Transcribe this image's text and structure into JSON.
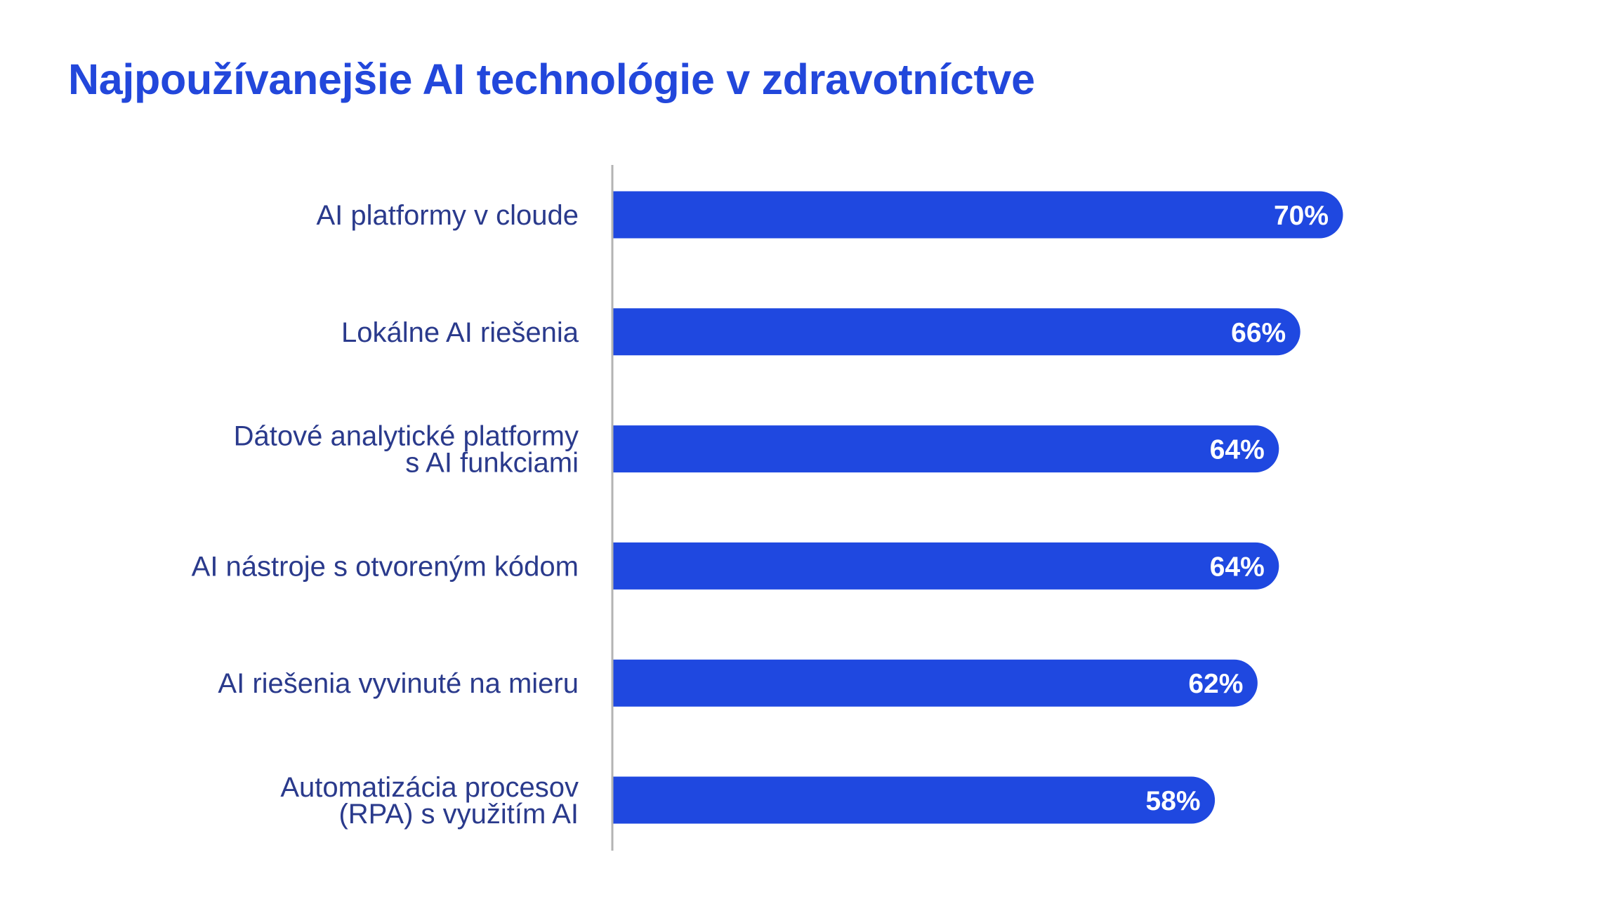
{
  "chart_data": {
    "type": "bar",
    "orientation": "horizontal",
    "title": "Najpoužívanejšie AI technológie v zdravotníctve",
    "xlabel": "",
    "ylabel": "",
    "categories": [
      [
        "AI platformy v cloude"
      ],
      [
        "Lokálne AI riešenia"
      ],
      [
        "Dátové analytické platformy",
        "s AI funkciami"
      ],
      [
        "AI nástroje s otvoreným kódom"
      ],
      [
        "AI riešenia vyvinuté na mieru"
      ],
      [
        "Automatizácia procesov",
        "(RPA) s využitím AI"
      ]
    ],
    "values": [
      70,
      66,
      64,
      64,
      62,
      58
    ],
    "value_labels": [
      "70%",
      "66%",
      "64%",
      "64%",
      "62%",
      "58%"
    ],
    "unit": "%",
    "grid": false,
    "legend": "none",
    "colors": {
      "bar": "#1f48e0",
      "title": "#2247db",
      "label": "#2a3a8c",
      "axis": "#b3b3b3",
      "value_text": "#ffffff"
    }
  }
}
